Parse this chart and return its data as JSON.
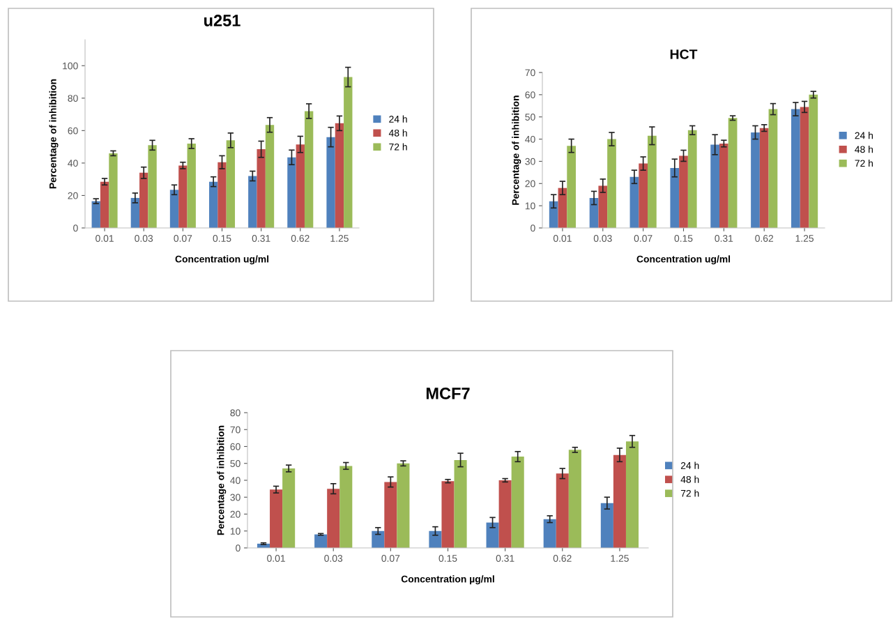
{
  "chart_data": [
    {
      "type": "bar",
      "title": "u251",
      "xlabel": "Concentration ug/ml",
      "ylabel": "Percentage of inhibition",
      "categories": [
        "0.01",
        "0.03",
        "0.07",
        "0.15",
        "0.31",
        "0.62",
        "1.25"
      ],
      "ylim": [
        0,
        116
      ],
      "yticks": [
        0,
        20,
        40,
        60,
        80,
        100
      ],
      "legend": "right",
      "series": [
        {
          "name": "24 h",
          "color": "#4f81bd",
          "values": [
            16.5,
            18.5,
            23.5,
            28.5,
            32,
            43.5,
            56
          ],
          "errors": [
            1.5,
            3,
            3,
            3,
            3,
            4.5,
            6
          ]
        },
        {
          "name": "48 h",
          "color": "#c0504d",
          "values": [
            28.5,
            34,
            38.5,
            40.5,
            48.5,
            51.5,
            64.5
          ],
          "errors": [
            2,
            3.5,
            2,
            4,
            5,
            5,
            4.5
          ]
        },
        {
          "name": "72 h",
          "color": "#9bbb59",
          "values": [
            46,
            51,
            52,
            54,
            63.5,
            72,
            93
          ],
          "errors": [
            1.5,
            3,
            3,
            4.5,
            4.5,
            4.5,
            6
          ]
        }
      ]
    },
    {
      "type": "bar",
      "title": "HCT",
      "xlabel": "Concentration ug/ml",
      "ylabel": "Percentage of inhibition",
      "categories": [
        "0.01",
        "0.03",
        "0.07",
        "0.15",
        "0.31",
        "0.62",
        "1.25"
      ],
      "ylim": [
        0,
        70
      ],
      "yticks": [
        0,
        10,
        20,
        30,
        40,
        50,
        60,
        70
      ],
      "legend": "right",
      "series": [
        {
          "name": "24 h",
          "color": "#4f81bd",
          "values": [
            12,
            13.5,
            23,
            27,
            37.5,
            43,
            53.5
          ],
          "errors": [
            3,
            3,
            3,
            4,
            4.5,
            3,
            3
          ]
        },
        {
          "name": "48 h",
          "color": "#c0504d",
          "values": [
            18,
            19,
            29,
            32.5,
            38,
            45,
            54.5
          ],
          "errors": [
            3,
            3,
            3,
            2.5,
            1.5,
            1.5,
            2.5
          ]
        },
        {
          "name": "72 h",
          "color": "#9bbb59",
          "values": [
            37,
            40,
            41.5,
            44,
            49.5,
            53.5,
            60
          ],
          "errors": [
            3,
            3,
            4,
            2,
            1,
            2.5,
            1.5
          ]
        }
      ]
    },
    {
      "type": "bar",
      "title": "MCF7",
      "xlabel": "Concentration µg/ml",
      "ylabel": "Percentage of inhibition",
      "categories": [
        "0.01",
        "0.03",
        "0.07",
        "0.15",
        "0.31",
        "0.62",
        "1.25"
      ],
      "ylim": [
        0,
        80
      ],
      "yticks": [
        0,
        10,
        20,
        30,
        40,
        50,
        60,
        70,
        80
      ],
      "legend": "right",
      "series": [
        {
          "name": "24 h",
          "color": "#4f81bd",
          "values": [
            2.5,
            8,
            10,
            10,
            15,
            17,
            26.5
          ],
          "errors": [
            0.5,
            0.5,
            2,
            2.5,
            3,
            2,
            3.5
          ]
        },
        {
          "name": "48 h",
          "color": "#c0504d",
          "values": [
            34.5,
            35,
            39,
            39.5,
            40,
            44,
            55
          ],
          "errors": [
            2,
            3,
            3,
            1,
            1,
            3,
            4
          ]
        },
        {
          "name": "72 h",
          "color": "#9bbb59",
          "values": [
            47,
            48.5,
            50,
            52,
            54,
            58,
            63
          ],
          "errors": [
            2,
            2,
            1.5,
            4,
            3,
            1.5,
            3.5
          ]
        }
      ]
    }
  ]
}
